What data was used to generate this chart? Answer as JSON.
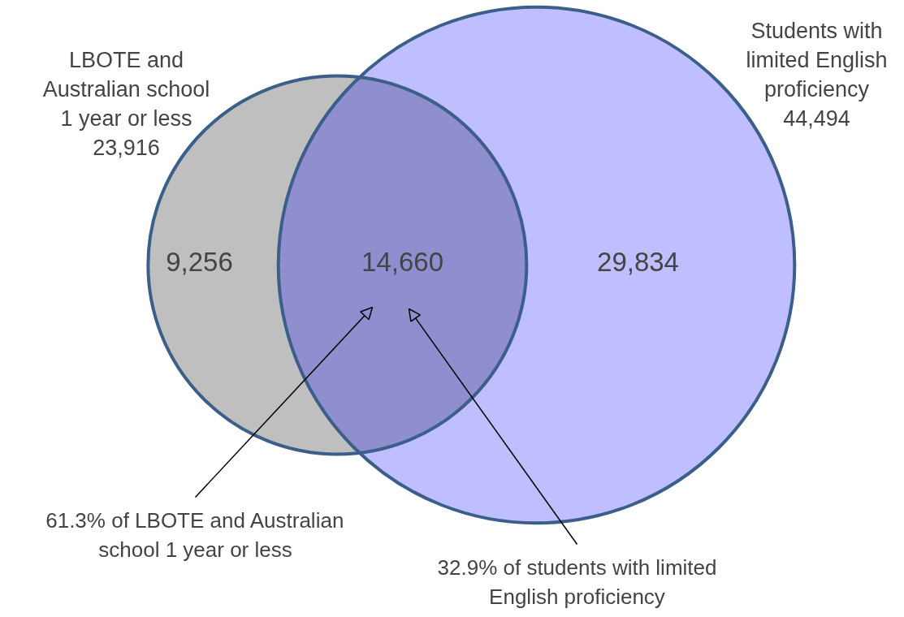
{
  "chart_data": {
    "type": "other",
    "categories": [
      "LBOTE and\nAustralian school\n1 year or less\n23,916",
      null,
      "Students with\nlimited English\nproficiency\n44,494"
    ],
    "values": [
      9256,
      14660,
      29834
    ],
    "colors": [
      "#bfbfbf",
      "#8f8fcf",
      "#bfbfff"
    ],
    "value_labels": [
      "9,256",
      "14,660",
      "29,834"
    ],
    "annotations": [
      "61.3% of LBOTE and Australian\nschool 1 year or less",
      "32.9% of students with limited\nEnglish proficiency"
    ]
  }
}
